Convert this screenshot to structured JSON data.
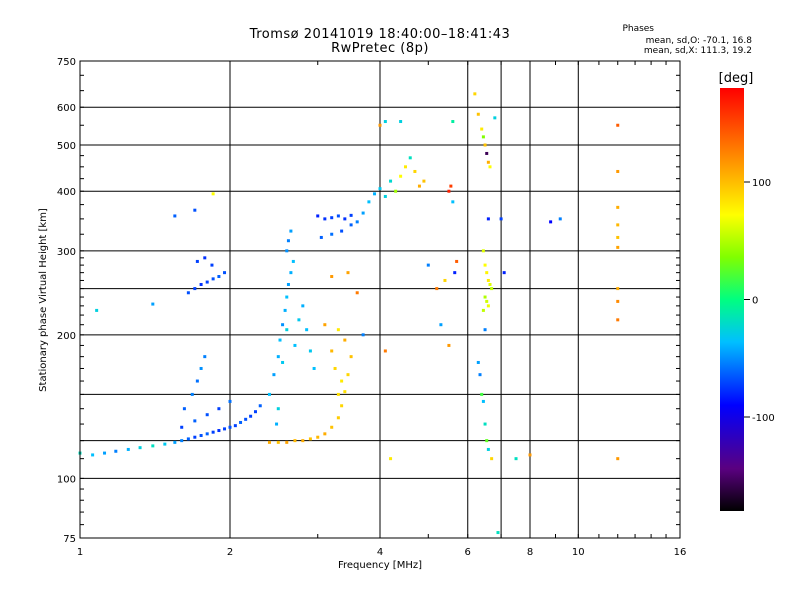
{
  "header": {
    "title_line1": "Tromsø 20141019 18:40:00–18:41:43",
    "title_line2": "RwPretec (8p)",
    "phase_heading": "Phases",
    "phase_o": "mean, sd,O: -70.1, 16.8",
    "phase_x": "mean, sd,X: 111.3, 19.2"
  },
  "colorbar": {
    "unit_label": "[deg]",
    "ticks": [
      100,
      0,
      -100
    ],
    "range": [
      -180,
      180
    ]
  },
  "chart_data": {
    "type": "scatter",
    "title": "Tromsø 20141019 18:40:00–18:41:43",
    "subtitle": "RwPretec (8p)",
    "xlabel": "Frequency [MHz]",
    "ylabel": "Stationary phase Virtual Height [km]",
    "xscale": "log",
    "yscale": "log",
    "xlim": [
      1,
      16
    ],
    "ylim": [
      75,
      750
    ],
    "x_ticks": [
      1,
      2,
      4,
      6,
      8,
      10,
      16
    ],
    "y_ticks": [
      75,
      100,
      200,
      300,
      400,
      500,
      600,
      750
    ],
    "grid_x": [
      2,
      4,
      6,
      7,
      8,
      10
    ],
    "grid_y": [
      100,
      120,
      150,
      200,
      250,
      300,
      400,
      500,
      600
    ],
    "grid": true,
    "color_encoding": "phase_deg",
    "series": [
      {
        "values_format": "[x_MHz, height_km, phase_deg]",
        "points": [
          [
            1.0,
            113,
            -20
          ],
          [
            1.06,
            112,
            -40
          ],
          [
            1.12,
            113,
            -50
          ],
          [
            1.18,
            114,
            -60
          ],
          [
            1.25,
            115,
            -45
          ],
          [
            1.32,
            116,
            -30
          ],
          [
            1.4,
            117,
            -20
          ],
          [
            1.48,
            118,
            -35
          ],
          [
            1.55,
            119,
            -50
          ],
          [
            1.6,
            120,
            -60
          ],
          [
            1.65,
            121,
            -70
          ],
          [
            1.7,
            122,
            -80
          ],
          [
            1.75,
            123,
            -75
          ],
          [
            1.8,
            124,
            -70
          ],
          [
            1.85,
            125,
            -80
          ],
          [
            1.9,
            126,
            -85
          ],
          [
            1.95,
            127,
            -80
          ],
          [
            2.0,
            128,
            -75
          ],
          [
            2.05,
            129,
            -80
          ],
          [
            2.1,
            131,
            -70
          ],
          [
            2.15,
            133,
            -75
          ],
          [
            2.2,
            135,
            -80
          ],
          [
            2.25,
            138,
            -80
          ],
          [
            2.3,
            142,
            -70
          ],
          [
            1.6,
            128,
            -80
          ],
          [
            1.7,
            132,
            -70
          ],
          [
            1.8,
            136,
            -75
          ],
          [
            1.9,
            140,
            -80
          ],
          [
            2.0,
            145,
            -65
          ],
          [
            1.62,
            140,
            -70
          ],
          [
            1.68,
            150,
            -60
          ],
          [
            1.72,
            160,
            -65
          ],
          [
            1.75,
            170,
            -55
          ],
          [
            1.78,
            180,
            -60
          ],
          [
            1.65,
            245,
            -75
          ],
          [
            1.7,
            250,
            -80
          ],
          [
            1.75,
            255,
            -85
          ],
          [
            1.8,
            258,
            -80
          ],
          [
            1.85,
            262,
            -75
          ],
          [
            1.9,
            265,
            -70
          ],
          [
            1.95,
            270,
            -75
          ],
          [
            1.72,
            285,
            -80
          ],
          [
            1.78,
            290,
            -85
          ],
          [
            1.84,
            280,
            -80
          ],
          [
            1.08,
            225,
            -30
          ],
          [
            1.4,
            232,
            -50
          ],
          [
            1.55,
            355,
            -70
          ],
          [
            1.7,
            365,
            -75
          ],
          [
            1.85,
            395,
            80
          ]
        ]
      },
      {
        "values_format": "[x_MHz, height_km, phase_deg]",
        "points": [
          [
            2.4,
            150,
            -40
          ],
          [
            2.45,
            165,
            -50
          ],
          [
            2.5,
            180,
            -45
          ],
          [
            2.52,
            195,
            -40
          ],
          [
            2.55,
            210,
            -55
          ],
          [
            2.58,
            225,
            -45
          ],
          [
            2.6,
            240,
            -40
          ],
          [
            2.62,
            255,
            -50
          ],
          [
            2.65,
            270,
            -45
          ],
          [
            2.68,
            285,
            -40
          ],
          [
            2.6,
            300,
            -55
          ],
          [
            2.62,
            315,
            -60
          ],
          [
            2.65,
            330,
            -50
          ],
          [
            2.55,
            175,
            -35
          ],
          [
            2.6,
            205,
            -30
          ],
          [
            2.7,
            190,
            -40
          ],
          [
            2.75,
            215,
            -35
          ],
          [
            2.8,
            230,
            -45
          ],
          [
            2.85,
            205,
            -40
          ],
          [
            2.9,
            185,
            -35
          ],
          [
            2.95,
            170,
            -40
          ],
          [
            2.5,
            140,
            -30
          ],
          [
            2.48,
            130,
            -45
          ]
        ]
      },
      {
        "values_format": "[x_MHz, height_km, phase_deg]",
        "points": [
          [
            2.4,
            119,
            120
          ],
          [
            2.5,
            119,
            110
          ],
          [
            2.6,
            119,
            125
          ],
          [
            2.7,
            120,
            115
          ],
          [
            2.8,
            120,
            120
          ],
          [
            2.9,
            121,
            110
          ],
          [
            3.0,
            122,
            115
          ],
          [
            3.1,
            124,
            120
          ],
          [
            3.2,
            128,
            110
          ],
          [
            3.3,
            134,
            105
          ],
          [
            3.35,
            142,
            100
          ],
          [
            3.4,
            152,
            95
          ],
          [
            3.45,
            165,
            100
          ],
          [
            3.5,
            180,
            110
          ],
          [
            3.3,
            150,
            95
          ],
          [
            3.35,
            160,
            90
          ],
          [
            3.25,
            170,
            100
          ],
          [
            3.2,
            185,
            115
          ],
          [
            3.4,
            195,
            120
          ],
          [
            3.1,
            210,
            125
          ]
        ]
      },
      {
        "values_format": "[x_MHz, height_km, phase_deg]",
        "points": [
          [
            3.0,
            355,
            -90
          ],
          [
            3.1,
            350,
            -85
          ],
          [
            3.2,
            352,
            -80
          ],
          [
            3.3,
            355,
            -75
          ],
          [
            3.4,
            350,
            -85
          ],
          [
            3.5,
            356,
            -80
          ],
          [
            3.05,
            320,
            -70
          ],
          [
            3.2,
            325,
            -65
          ],
          [
            3.35,
            330,
            -75
          ],
          [
            3.5,
            340,
            -70
          ],
          [
            3.6,
            345,
            -60
          ],
          [
            3.7,
            360,
            -50
          ],
          [
            3.8,
            380,
            -40
          ],
          [
            3.9,
            395,
            -45
          ],
          [
            4.0,
            405,
            -35
          ],
          [
            4.1,
            390,
            -30
          ],
          [
            4.2,
            420,
            -25
          ],
          [
            4.3,
            400,
            50
          ],
          [
            4.4,
            430,
            80
          ],
          [
            4.5,
            450,
            90
          ],
          [
            4.6,
            470,
            -20
          ],
          [
            4.7,
            440,
            100
          ],
          [
            4.8,
            410,
            120
          ],
          [
            4.9,
            420,
            110
          ],
          [
            3.2,
            265,
            130
          ],
          [
            3.45,
            270,
            125
          ],
          [
            3.6,
            245,
            140
          ],
          [
            3.3,
            205,
            90
          ],
          [
            4.1,
            560,
            -30
          ],
          [
            4.0,
            550,
            130
          ],
          [
            4.1,
            185,
            140
          ],
          [
            4.2,
            110,
            90
          ],
          [
            3.7,
            200,
            -60
          ],
          [
            4.4,
            560,
            -30
          ]
        ]
      },
      {
        "values_format": "[x_MHz, height_km, phase_deg]",
        "points": [
          [
            5.0,
            280,
            -60
          ],
          [
            5.2,
            250,
            140
          ],
          [
            5.3,
            210,
            -50
          ],
          [
            5.4,
            260,
            100
          ],
          [
            5.5,
            400,
            170
          ],
          [
            5.55,
            410,
            160
          ],
          [
            5.6,
            380,
            -40
          ],
          [
            5.65,
            270,
            -90
          ],
          [
            5.7,
            285,
            150
          ],
          [
            5.5,
            190,
            130
          ],
          [
            5.6,
            560,
            -10
          ],
          [
            6.2,
            640,
            100
          ],
          [
            6.3,
            580,
            110
          ],
          [
            6.4,
            540,
            90
          ],
          [
            6.45,
            520,
            40
          ],
          [
            6.5,
            500,
            110
          ],
          [
            6.55,
            480,
            -160
          ],
          [
            6.6,
            460,
            120
          ],
          [
            6.65,
            450,
            80
          ],
          [
            6.45,
            300,
            70
          ],
          [
            6.5,
            280,
            80
          ],
          [
            6.55,
            270,
            85
          ],
          [
            6.6,
            260,
            90
          ],
          [
            6.65,
            255,
            70
          ],
          [
            6.7,
            250,
            60
          ],
          [
            6.5,
            240,
            55
          ],
          [
            6.55,
            235,
            65
          ],
          [
            6.6,
            230,
            75
          ],
          [
            6.45,
            225,
            60
          ],
          [
            6.3,
            175,
            -50
          ],
          [
            6.35,
            165,
            -60
          ],
          [
            6.4,
            150,
            20
          ],
          [
            6.45,
            145,
            -40
          ],
          [
            6.5,
            130,
            -20
          ],
          [
            6.55,
            120,
            30
          ],
          [
            6.6,
            115,
            -30
          ],
          [
            6.7,
            110,
            100
          ],
          [
            6.5,
            205,
            -60
          ],
          [
            6.8,
            570,
            -30
          ],
          [
            6.6,
            350,
            -90
          ],
          [
            7.0,
            350,
            -80
          ],
          [
            7.1,
            270,
            -90
          ],
          [
            7.5,
            110,
            -20
          ],
          [
            8.0,
            112,
            130
          ],
          [
            8.8,
            345,
            -100
          ],
          [
            9.2,
            350,
            -60
          ],
          [
            6.9,
            77,
            -20
          ]
        ]
      },
      {
        "values_format": "[x_MHz, height_km, phase_deg]",
        "points": [
          [
            12.0,
            550,
            150
          ],
          [
            12.0,
            440,
            130
          ],
          [
            12.0,
            370,
            120
          ],
          [
            12.0,
            340,
            115
          ],
          [
            12.0,
            320,
            110
          ],
          [
            12.0,
            305,
            125
          ],
          [
            12.0,
            250,
            120
          ],
          [
            12.0,
            235,
            135
          ],
          [
            12.0,
            215,
            140
          ],
          [
            12.0,
            110,
            130
          ]
        ]
      }
    ]
  },
  "axes": {
    "xlabel": "Frequency [MHz]",
    "ylabel": "Stationary phase Virtual Height [km]"
  }
}
